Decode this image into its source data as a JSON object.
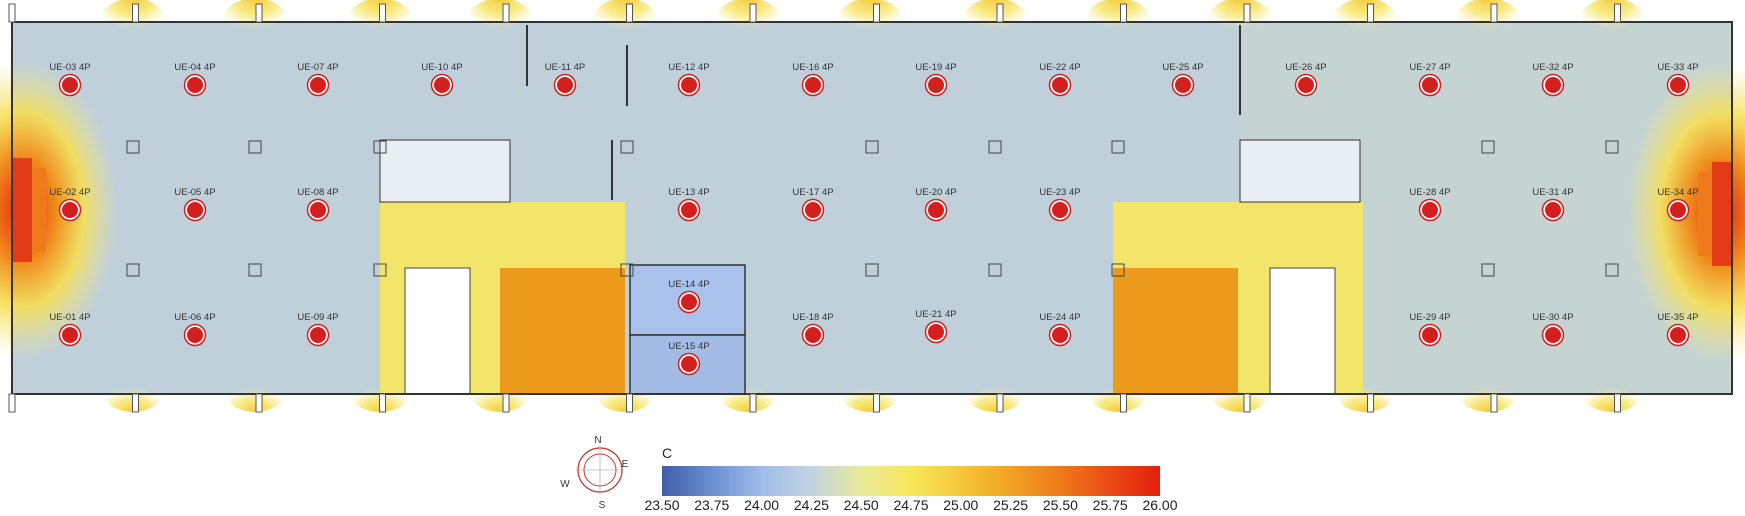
{
  "floor_plan": {
    "units": [
      {
        "id": "UE-01 4P"
      },
      {
        "id": "UE-02 4P"
      },
      {
        "id": "UE-03 4P"
      },
      {
        "id": "UE-04 4P"
      },
      {
        "id": "UE-05 4P"
      },
      {
        "id": "UE-06 4P"
      },
      {
        "id": "UE-07 4P"
      },
      {
        "id": "UE-08 4P"
      },
      {
        "id": "UE-09 4P"
      },
      {
        "id": "UE-10 4P"
      },
      {
        "id": "UE-11 4P"
      },
      {
        "id": "UE-12 4P"
      },
      {
        "id": "UE-13 4P"
      },
      {
        "id": "UE-14 4P"
      },
      {
        "id": "UE-15 4P"
      },
      {
        "id": "UE-16 4P"
      },
      {
        "id": "UE-17 4P"
      },
      {
        "id": "UE-18 4P"
      },
      {
        "id": "UE-19 4P"
      },
      {
        "id": "UE-20 4P"
      },
      {
        "id": "UE-21 4P"
      },
      {
        "id": "UE-22 4P"
      },
      {
        "id": "UE-23 4P"
      },
      {
        "id": "UE-24 4P"
      },
      {
        "id": "UE-25 4P"
      },
      {
        "id": "UE-26 4P"
      },
      {
        "id": "UE-27 4P"
      },
      {
        "id": "UE-28 4P"
      },
      {
        "id": "UE-29 4P"
      },
      {
        "id": "UE-30 4P"
      },
      {
        "id": "UE-31 4P"
      },
      {
        "id": "UE-32 4P"
      },
      {
        "id": "UE-33 4P"
      },
      {
        "id": "UE-34 4P"
      },
      {
        "id": "UE-35 4P"
      }
    ],
    "unit_marker_color": "#d51e1e",
    "colors": {
      "floor_cool": "#bccfd8",
      "warm_zone": "#f3e56a",
      "hot_zone": "#ec9a1c",
      "cool_room": "#a9c2ec",
      "hot_spot": "#e23a1a"
    }
  },
  "compass": {
    "n": "N",
    "e": "E",
    "s": "S",
    "w": "W"
  },
  "legend": {
    "unit": "C",
    "ticks": [
      "23.50",
      "23.75",
      "24.00",
      "24.25",
      "24.50",
      "24.75",
      "25.00",
      "25.25",
      "25.50",
      "25.75",
      "26.00"
    ],
    "gradient": [
      "#3f5ea8",
      "#6b8fd0",
      "#9fbce8",
      "#c3d3e0",
      "#e9ea9a",
      "#f7e75a",
      "#f5c73a",
      "#f1a224",
      "#ee7a1a",
      "#ea4a14",
      "#e4200e"
    ]
  }
}
